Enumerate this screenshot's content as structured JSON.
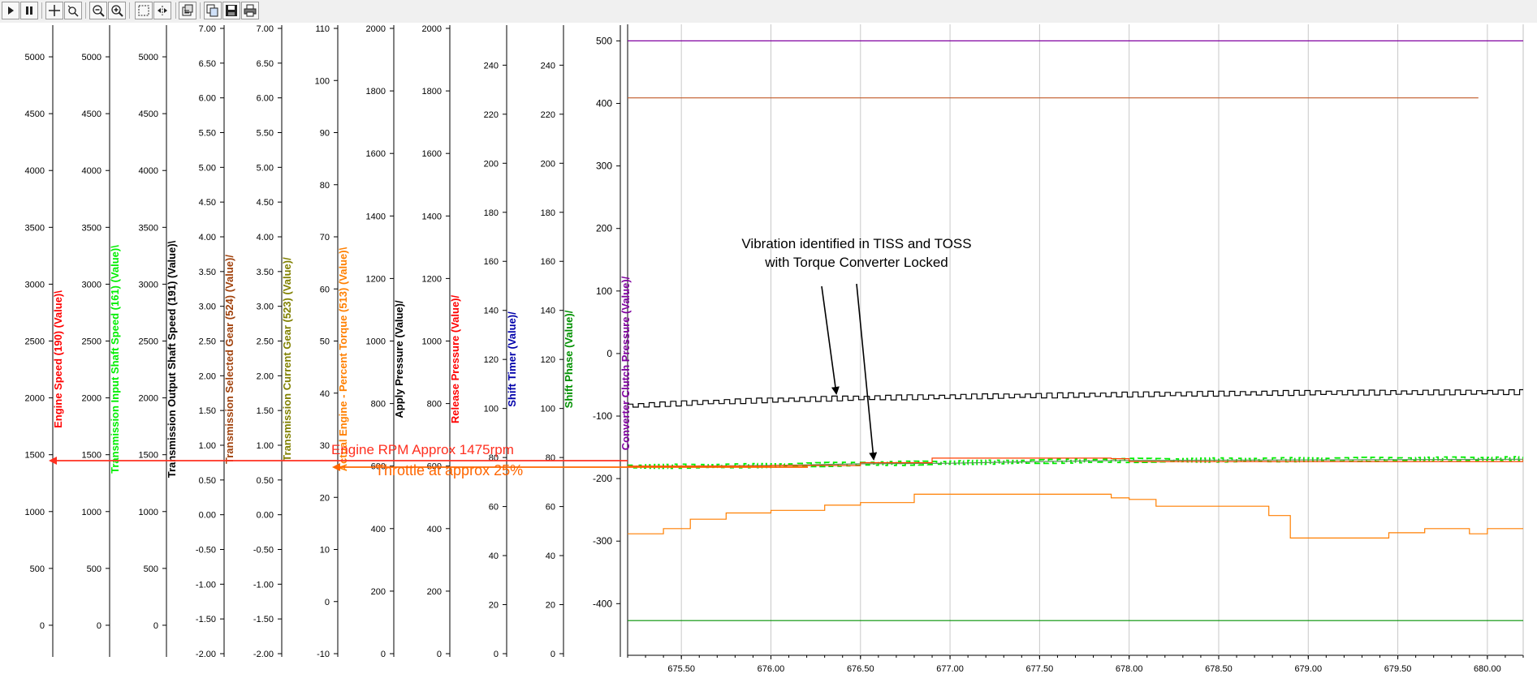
{
  "toolbar": {
    "buttons": [
      {
        "name": "play-button",
        "icon": "play-icon"
      },
      {
        "name": "pause-button",
        "icon": "pause-icon"
      },
      {
        "name": "crosshair-button",
        "icon": "crosshair-icon"
      },
      {
        "name": "pan-button",
        "icon": "move-icon"
      },
      {
        "name": "zoom-out-button",
        "icon": "zoom-out-icon"
      },
      {
        "name": "zoom-in-button",
        "icon": "zoom-in-icon"
      },
      {
        "name": "select-region-button",
        "icon": "select-icon"
      },
      {
        "name": "fit-button",
        "icon": "fit-icon"
      },
      {
        "name": "properties-button",
        "icon": "properties-icon"
      },
      {
        "name": "copy-button",
        "icon": "copy-icon"
      },
      {
        "name": "save-button",
        "icon": "save-icon"
      },
      {
        "name": "print-button",
        "icon": "print-icon"
      }
    ]
  },
  "chart_data": {
    "type": "line",
    "title": "",
    "grid": true,
    "x": {
      "range": [
        675.2,
        680.2
      ],
      "ticks": [
        "675.50",
        "676.00",
        "676.50",
        "677.00",
        "677.50",
        "678.00",
        "678.50",
        "679.00",
        "679.50",
        "680.00"
      ]
    },
    "axes": [
      {
        "id": "engine_speed",
        "label": "Engine Speed (190) (Value)\\",
        "color": "#ff0000",
        "range": [
          -250,
          5250
        ],
        "ticks": [
          "0",
          "500",
          "1000",
          "1500",
          "2000",
          "2500",
          "3000",
          "3500",
          "4000",
          "4500",
          "5000"
        ]
      },
      {
        "id": "tiss",
        "label": "Transmission Input Shaft Speed (161) (Value)\\",
        "color": "#00ee00",
        "range": [
          -250,
          5250
        ],
        "ticks": [
          "0",
          "500",
          "1000",
          "1500",
          "2000",
          "2500",
          "3000",
          "3500",
          "4000",
          "4500",
          "5000"
        ]
      },
      {
        "id": "toss",
        "label": "Transmission Output Shaft Speed (191) (Value)\\",
        "color": "#000000",
        "range": [
          -250,
          5250
        ],
        "ticks": [
          "0",
          "500",
          "1000",
          "1500",
          "2000",
          "2500",
          "3000",
          "3500",
          "4000",
          "4500",
          "5000"
        ]
      },
      {
        "id": "selected_gear",
        "label": "Transmission Selected Gear (524) (Value)/",
        "color": "#a0400a",
        "range": [
          -2.0,
          7.0
        ],
        "ticks": [
          "-2.00",
          "-1.50",
          "-1.00",
          "-0.50",
          "0.00",
          "0.50",
          "1.00",
          "1.50",
          "2.00",
          "2.50",
          "3.00",
          "3.50",
          "4.00",
          "4.50",
          "5.00",
          "5.50",
          "6.00",
          "6.50",
          "7.00"
        ]
      },
      {
        "id": "current_gear",
        "label": "Transmission Current Gear (523) (Value)/",
        "color": "#808000",
        "range": [
          -2.0,
          7.0
        ],
        "ticks": [
          "-2.00",
          "-1.50",
          "-1.00",
          "-0.50",
          "0.00",
          "0.50",
          "1.00",
          "1.50",
          "2.00",
          "2.50",
          "3.00",
          "3.50",
          "4.00",
          "4.50",
          "5.00",
          "5.50",
          "6.00",
          "6.50",
          "7.00"
        ]
      },
      {
        "id": "torque",
        "label": "Actual Engine - Percent Torque (513) (Value)\\",
        "color": "#ff7f00",
        "range": [
          -10,
          110
        ],
        "ticks": [
          "-10",
          "0",
          "10",
          "20",
          "30",
          "40",
          "50",
          "60",
          "70",
          "80",
          "90",
          "100",
          "110"
        ]
      },
      {
        "id": "apply_pressure",
        "label": "Apply Pressure (Value)/",
        "color": "#000000",
        "range": [
          0,
          2000
        ],
        "ticks": [
          "0",
          "200",
          "400",
          "600",
          "800",
          "1000",
          "1200",
          "1400",
          "1600",
          "1800",
          "2000"
        ]
      },
      {
        "id": "release_pressure",
        "label": "Release Pressure (Value)/",
        "color": "#ff0000",
        "range": [
          0,
          2000
        ],
        "ticks": [
          "0",
          "200",
          "400",
          "600",
          "800",
          "1000",
          "1200",
          "1400",
          "1600",
          "1800",
          "2000"
        ]
      },
      {
        "id": "shift_timer",
        "label": "Shift Timer (Value)/",
        "color": "#0000aa",
        "range": [
          0,
          255
        ],
        "ticks": [
          "0",
          "20",
          "40",
          "60",
          "80",
          "100",
          "120",
          "140",
          "160",
          "180",
          "200",
          "220",
          "240"
        ]
      },
      {
        "id": "shift_phase",
        "label": "Shift Phase (Value)/",
        "color": "#009000",
        "range": [
          0,
          255
        ],
        "ticks": [
          "0",
          "20",
          "40",
          "60",
          "80",
          "100",
          "120",
          "140",
          "160",
          "180",
          "200",
          "220",
          "240"
        ]
      },
      {
        "id": "clutch_pressure",
        "label": "Converter Clutch Pressure (Value)/",
        "color": "#8000a0",
        "range": [
          -480,
          520
        ],
        "ticks": [
          "-400",
          "-300",
          "-200",
          "-100",
          "0",
          "100",
          "200",
          "300",
          "400",
          "500"
        ]
      }
    ],
    "series": [
      {
        "axis": "clutch_pressure",
        "color": "#8000a0",
        "style": "flat",
        "points": [
          [
            675.2,
            500
          ],
          [
            680.2,
            500
          ]
        ]
      },
      {
        "axis": "selected_gear",
        "color": "#c05a28",
        "style": "flat",
        "points": [
          [
            675.2,
            6.0
          ],
          [
            679.95,
            6.0
          ]
        ]
      },
      {
        "axis": "toss",
        "color": "#000000",
        "style": "ripple",
        "amplitude": 22,
        "period": 0.06,
        "points": [
          [
            675.2,
            1930
          ],
          [
            675.6,
            1960
          ],
          [
            676.0,
            1980
          ],
          [
            676.5,
            2000
          ],
          [
            677.0,
            2010
          ],
          [
            677.5,
            2020
          ],
          [
            678.0,
            2030
          ],
          [
            679.0,
            2045
          ],
          [
            680.2,
            2050
          ]
        ]
      },
      {
        "axis": "tiss",
        "color": "#00ee00",
        "style": "ripple-dashed",
        "amplitude": 18,
        "period": 0.05,
        "points": [
          [
            675.2,
            1395
          ],
          [
            676.0,
            1405
          ],
          [
            676.5,
            1420
          ],
          [
            677.0,
            1430
          ],
          [
            677.5,
            1440
          ],
          [
            678.0,
            1450
          ],
          [
            680.2,
            1465
          ]
        ]
      },
      {
        "axis": "toss",
        "color": "#5a8f5a",
        "style": "line",
        "points": [
          [
            675.2,
            1395
          ],
          [
            676.0,
            1405
          ],
          [
            676.5,
            1420
          ],
          [
            677.0,
            1425
          ],
          [
            677.5,
            1440
          ],
          [
            678.0,
            1450
          ],
          [
            680.2,
            1460
          ]
        ]
      },
      {
        "axis": "engine_speed",
        "color": "#ff4000",
        "style": "step",
        "points": [
          [
            675.2,
            1400
          ],
          [
            676.0,
            1405
          ],
          [
            676.5,
            1430
          ],
          [
            676.9,
            1470
          ],
          [
            677.9,
            1465
          ],
          [
            678.0,
            1440
          ],
          [
            680.2,
            1460
          ]
        ]
      },
      {
        "axis": "torque",
        "color": "#ff7f00",
        "style": "step",
        "points": [
          [
            675.2,
            13.0
          ],
          [
            675.4,
            14.0
          ],
          [
            675.55,
            15.8
          ],
          [
            675.75,
            17.0
          ],
          [
            676.0,
            17.5
          ],
          [
            676.3,
            18.5
          ],
          [
            676.5,
            19.0
          ],
          [
            676.8,
            20.6
          ],
          [
            677.3,
            20.6
          ],
          [
            677.6,
            20.6
          ],
          [
            677.9,
            19.9
          ],
          [
            678.0,
            19.6
          ],
          [
            678.15,
            18.3
          ],
          [
            678.4,
            18.3
          ],
          [
            678.65,
            18.3
          ],
          [
            678.78,
            16.5
          ],
          [
            678.9,
            12.2
          ],
          [
            679.1,
            12.2
          ],
          [
            679.45,
            13.2
          ],
          [
            679.65,
            14.0
          ],
          [
            679.9,
            13.0
          ],
          [
            680.0,
            14.0
          ],
          [
            680.2,
            14.0
          ]
        ]
      },
      {
        "axis": "shift_phase",
        "color": "#009000",
        "style": "flat",
        "points": [
          [
            675.2,
            13.5
          ],
          [
            680.2,
            13.5
          ]
        ]
      }
    ],
    "annotations": [
      {
        "text": "Vibration identified in TISS and TOSS",
        "color": "#000000"
      },
      {
        "text": "with Torque Converter Locked",
        "color": "#000000"
      },
      {
        "text": "Engine RPM Approx 1475rpm",
        "color": "#ff3020"
      },
      {
        "text": "Throttle at approx 25%",
        "color": "#ff6600"
      }
    ]
  }
}
